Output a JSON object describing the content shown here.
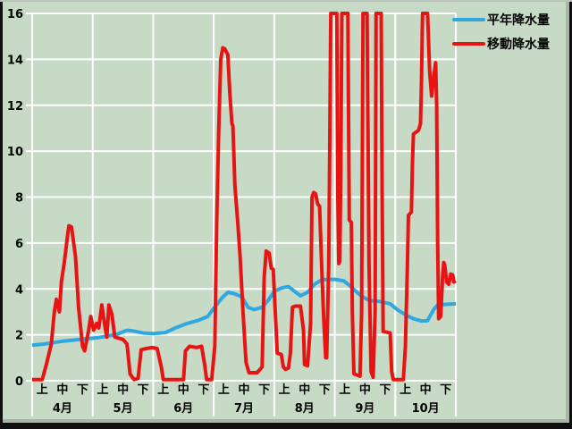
{
  "window": {
    "background_color": "#c6dac6",
    "grid_color": "#ffffff",
    "text_color": "#000000",
    "frame_shadow_color": "#a9b3a9",
    "frame_edge_color": "#101010"
  },
  "legend": {
    "items": [
      {
        "label": "平年降水量",
        "color": "#2fa8e1"
      },
      {
        "label": "移動降水量",
        "color": "#e81414"
      }
    ]
  },
  "chart_data": {
    "type": "line",
    "title": "",
    "xlabel": "",
    "ylabel": "",
    "grid": {
      "horizontal": true,
      "vertical_month_boundaries": true,
      "color": "#ffffff"
    },
    "legend_position": "top-right",
    "y_axis": {
      "min": 0,
      "max": 16,
      "tick_step": 2,
      "tick_labels": [
        "0",
        "2",
        "4",
        "6",
        "8",
        "10",
        "12",
        "14",
        "16"
      ]
    },
    "x_axis": {
      "months": [
        "4月",
        "5月",
        "6月",
        "7月",
        "8月",
        "9月",
        "10月"
      ],
      "periods": [
        "上",
        "中",
        "下"
      ],
      "unit": "旬 (period index, 3 per month, 21 total)"
    },
    "values_above_axis_clipped_at": 16,
    "series": [
      {
        "name": "平年降水量",
        "color": "#2fa8e1",
        "width": 4,
        "points": [
          [
            0,
            1.55
          ],
          [
            0.6,
            1.6
          ],
          [
            1.5,
            1.72
          ],
          [
            2.4,
            1.8
          ],
          [
            3.3,
            1.88
          ],
          [
            3.9,
            1.97
          ],
          [
            4.2,
            2.02
          ],
          [
            4.7,
            2.2
          ],
          [
            5.0,
            2.17
          ],
          [
            5.5,
            2.08
          ],
          [
            6.0,
            2.05
          ],
          [
            6.6,
            2.1
          ],
          [
            7.1,
            2.3
          ],
          [
            7.7,
            2.5
          ],
          [
            8.2,
            2.62
          ],
          [
            8.7,
            2.8
          ],
          [
            9.0,
            3.15
          ],
          [
            9.4,
            3.6
          ],
          [
            9.7,
            3.85
          ],
          [
            10.0,
            3.8
          ],
          [
            10.4,
            3.65
          ],
          [
            10.7,
            3.2
          ],
          [
            11.0,
            3.1
          ],
          [
            11.4,
            3.2
          ],
          [
            11.7,
            3.5
          ],
          [
            12.0,
            3.9
          ],
          [
            12.4,
            4.05
          ],
          [
            12.7,
            4.1
          ],
          [
            13.0,
            3.9
          ],
          [
            13.3,
            3.7
          ],
          [
            13.65,
            3.85
          ],
          [
            14.0,
            4.2
          ],
          [
            14.35,
            4.4
          ],
          [
            15.0,
            4.42
          ],
          [
            15.45,
            4.35
          ],
          [
            15.8,
            4.1
          ],
          [
            16.1,
            3.85
          ],
          [
            16.4,
            3.65
          ],
          [
            16.7,
            3.5
          ],
          [
            17.25,
            3.45
          ],
          [
            17.75,
            3.35
          ],
          [
            18.1,
            3.1
          ],
          [
            18.55,
            2.85
          ],
          [
            18.9,
            2.7
          ],
          [
            19.3,
            2.6
          ],
          [
            19.6,
            2.62
          ],
          [
            19.9,
            3.1
          ],
          [
            20.1,
            3.3
          ],
          [
            20.55,
            3.33
          ],
          [
            21,
            3.35
          ]
        ]
      },
      {
        "name": "移動降水量",
        "color": "#e81414",
        "width": 4,
        "points": [
          [
            0,
            0.05
          ],
          [
            0.5,
            0.05
          ],
          [
            0.7,
            0.7
          ],
          [
            0.95,
            1.6
          ],
          [
            1.1,
            3.0
          ],
          [
            1.2,
            3.55
          ],
          [
            1.35,
            3.0
          ],
          [
            1.45,
            4.3
          ],
          [
            1.6,
            5.2
          ],
          [
            1.75,
            6.3
          ],
          [
            1.82,
            6.75
          ],
          [
            1.95,
            6.7
          ],
          [
            2.15,
            5.4
          ],
          [
            2.3,
            3.2
          ],
          [
            2.5,
            1.5
          ],
          [
            2.6,
            1.3
          ],
          [
            2.8,
            2.2
          ],
          [
            2.9,
            2.8
          ],
          [
            3.05,
            2.2
          ],
          [
            3.2,
            2.5
          ],
          [
            3.3,
            2.3
          ],
          [
            3.45,
            3.3
          ],
          [
            3.6,
            2.4
          ],
          [
            3.7,
            1.9
          ],
          [
            3.8,
            3.3
          ],
          [
            3.95,
            2.9
          ],
          [
            4.1,
            1.9
          ],
          [
            4.3,
            1.85
          ],
          [
            4.5,
            1.8
          ],
          [
            4.7,
            1.6
          ],
          [
            4.85,
            0.3
          ],
          [
            5.05,
            0.05
          ],
          [
            5.25,
            0.1
          ],
          [
            5.4,
            1.35
          ],
          [
            5.65,
            1.4
          ],
          [
            5.95,
            1.45
          ],
          [
            6.2,
            1.4
          ],
          [
            6.4,
            0.6
          ],
          [
            6.5,
            0.05
          ],
          [
            7.5,
            0.05
          ],
          [
            7.6,
            1.3
          ],
          [
            7.8,
            1.5
          ],
          [
            8.15,
            1.45
          ],
          [
            8.4,
            1.5
          ],
          [
            8.55,
            0.7
          ],
          [
            8.65,
            0.05
          ],
          [
            8.9,
            0.05
          ],
          [
            9.05,
            1.5
          ],
          [
            9.15,
            7.0
          ],
          [
            9.25,
            11.0
          ],
          [
            9.35,
            14.0
          ],
          [
            9.45,
            14.5
          ],
          [
            9.55,
            14.45
          ],
          [
            9.7,
            14.2
          ],
          [
            9.8,
            12.5
          ],
          [
            9.9,
            11.2
          ],
          [
            9.95,
            11.1
          ],
          [
            10.05,
            8.5
          ],
          [
            10.2,
            6.8
          ],
          [
            10.3,
            5.5
          ],
          [
            10.45,
            3.0
          ],
          [
            10.6,
            0.8
          ],
          [
            10.75,
            0.35
          ],
          [
            11.15,
            0.35
          ],
          [
            11.4,
            0.6
          ],
          [
            11.5,
            4.5
          ],
          [
            11.6,
            5.65
          ],
          [
            11.75,
            5.55
          ],
          [
            11.85,
            4.9
          ],
          [
            11.95,
            4.85
          ],
          [
            12.05,
            3.0
          ],
          [
            12.15,
            1.2
          ],
          [
            12.35,
            1.15
          ],
          [
            12.45,
            0.6
          ],
          [
            12.55,
            0.5
          ],
          [
            12.7,
            0.55
          ],
          [
            12.8,
            1.2
          ],
          [
            12.9,
            3.2
          ],
          [
            13.05,
            3.25
          ],
          [
            13.3,
            3.25
          ],
          [
            13.45,
            2.2
          ],
          [
            13.5,
            0.7
          ],
          [
            13.65,
            0.65
          ],
          [
            13.8,
            2.5
          ],
          [
            13.87,
            8.0
          ],
          [
            13.95,
            8.2
          ],
          [
            14.05,
            8.15
          ],
          [
            14.15,
            7.7
          ],
          [
            14.25,
            7.6
          ],
          [
            14.35,
            5.0
          ],
          [
            14.45,
            2.7
          ],
          [
            14.55,
            1.0
          ],
          [
            14.6,
            1.0
          ],
          [
            14.7,
            5.0
          ],
          [
            14.75,
            10.0
          ],
          [
            14.8,
            16
          ],
          [
            15.1,
            16
          ],
          [
            15.15,
            8.0
          ],
          [
            15.2,
            5.1
          ],
          [
            15.25,
            5.2
          ],
          [
            15.3,
            9.0
          ],
          [
            15.35,
            16
          ],
          [
            15.65,
            16
          ],
          [
            15.72,
            7.0
          ],
          [
            15.82,
            6.9
          ],
          [
            15.87,
            3.0
          ],
          [
            15.95,
            0.3
          ],
          [
            16.25,
            0.2
          ],
          [
            16.33,
            3.0
          ],
          [
            16.4,
            16
          ],
          [
            16.6,
            16
          ],
          [
            16.7,
            5.0
          ],
          [
            16.8,
            0.4
          ],
          [
            16.9,
            0.15
          ],
          [
            17.0,
            3.0
          ],
          [
            17.05,
            16
          ],
          [
            17.3,
            16
          ],
          [
            17.35,
            8.0
          ],
          [
            17.4,
            2.15
          ],
          [
            17.75,
            2.08
          ],
          [
            17.82,
            0.4
          ],
          [
            17.9,
            0.05
          ],
          [
            18.4,
            0.05
          ],
          [
            18.5,
            1.5
          ],
          [
            18.6,
            5.0
          ],
          [
            18.65,
            7.2
          ],
          [
            18.8,
            7.35
          ],
          [
            18.85,
            9.5
          ],
          [
            18.9,
            10.75
          ],
          [
            19.15,
            10.9
          ],
          [
            19.25,
            11.2
          ],
          [
            19.3,
            13.0
          ],
          [
            19.35,
            16
          ],
          [
            19.6,
            16
          ],
          [
            19.7,
            13.5
          ],
          [
            19.8,
            12.4
          ],
          [
            19.9,
            13.2
          ],
          [
            20.0,
            13.85
          ],
          [
            20.05,
            12.0
          ],
          [
            20.1,
            6.0
          ],
          [
            20.15,
            2.7
          ],
          [
            20.25,
            2.8
          ],
          [
            20.35,
            4.6
          ],
          [
            20.4,
            5.15
          ],
          [
            20.45,
            5.05
          ],
          [
            20.55,
            4.3
          ],
          [
            20.65,
            4.2
          ],
          [
            20.75,
            4.65
          ],
          [
            20.85,
            4.6
          ],
          [
            20.9,
            4.3
          ],
          [
            21,
            4.35
          ]
        ]
      }
    ]
  }
}
